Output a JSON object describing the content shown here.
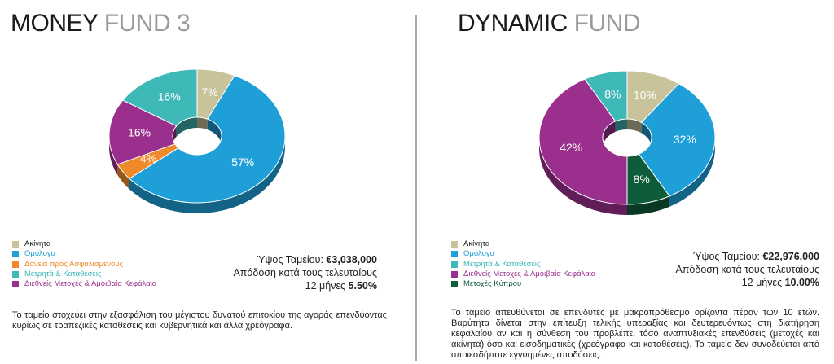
{
  "funds": [
    {
      "title_bold": "MONEY",
      "title_light": "FUND 3",
      "chart_data": {
        "type": "pie",
        "variant": "3d-donut",
        "start_angle_deg": 0,
        "slices": [
          {
            "label": "Ακίνητα",
            "value": 7,
            "color": "#c8c39b",
            "display": "7%"
          },
          {
            "label": "Ομόλογα",
            "value": 57,
            "color": "#1f9fd8",
            "display": "57%"
          },
          {
            "label": "Δάνεια προς Ασφαλισμένους",
            "value": 4,
            "color": "#ee8a2a",
            "display": "4%"
          },
          {
            "label": "Διεθνείς Μετοχές & Αμοιβαία Κεφάλαια",
            "value": 16,
            "color": "#9b2f8d",
            "display": "16%"
          },
          {
            "label": "Μετρητά & Καταθέσεις",
            "value": 16,
            "color": "#3fb8b8",
            "display": "16%"
          }
        ]
      },
      "legend": [
        {
          "label": "Ακίνητα",
          "color": "#c8c39b",
          "text_color": "#222222"
        },
        {
          "label": "Ομόλογα",
          "color": "#1f9fd8",
          "text_color": "#1f9fd8"
        },
        {
          "label": "Δάνεια προς Ασφαλισμένους",
          "color": "#ee8a2a",
          "text_color": "#ee8a2a"
        },
        {
          "label": "Μετρητά & Καταθέσεις",
          "color": "#3fb8b8",
          "text_color": "#3fb8b8"
        },
        {
          "label": "Διεθνείς Μετοχές & Αμοιβαία Κεφάλαια",
          "color": "#9b2f8d",
          "text_color": "#9b2f8d"
        }
      ],
      "size_label": "Ύψος Ταμείου:",
      "size_value": "€3,038,000",
      "return_label": "Απόδοση κατά τους τελευταίους",
      "return_period": "12 μήνες",
      "return_value": "5.50%",
      "description": "Το ταμείο στοχεύει στην εξασφάλιση του μέγιστου δυνατού επιτοκίου της αγοράς επενδύοντας κυρίως σε τραπεζικές καταθέσεις και κυβερνητικά και άλλα χρεόγραφα."
    },
    {
      "title_bold": "DYNAMIC",
      "title_light": "FUND",
      "chart_data": {
        "type": "pie",
        "variant": "3d-donut",
        "start_angle_deg": 0,
        "slices": [
          {
            "label": "Ακίνητα",
            "value": 10,
            "color": "#c8c39b",
            "display": "10%"
          },
          {
            "label": "Ομόλογα",
            "value": 32,
            "color": "#1f9fd8",
            "display": "32%"
          },
          {
            "label": "Μετοχές Κύπρου",
            "value": 8,
            "color": "#0f5c3a",
            "display": "8%"
          },
          {
            "label": "Διεθνείς Μετοχές & Αμοιβαία Κεφάλαια",
            "value": 42,
            "color": "#9b2f8d",
            "display": "42%"
          },
          {
            "label": "Μετρητά & Καταθέσεις",
            "value": 8,
            "color": "#3fb8b8",
            "display": "8%"
          }
        ]
      },
      "legend": [
        {
          "label": "Ακίνητα",
          "color": "#c8c39b",
          "text_color": "#222222"
        },
        {
          "label": "Ομόλογα",
          "color": "#1f9fd8",
          "text_color": "#1f9fd8"
        },
        {
          "label": "Μετρητά & Καταθέσεις",
          "color": "#3fb8b8",
          "text_color": "#3fb8b8"
        },
        {
          "label": "Διεθνείς Μετοχές & Αμοιβαία Κεφάλαια",
          "color": "#9b2f8d",
          "text_color": "#9b2f8d"
        },
        {
          "label": "Μετοχές Κύπρου",
          "color": "#0f5c3a",
          "text_color": "#0f5c3a"
        }
      ],
      "size_label": "Ύψος Ταμείου:",
      "size_value": "€22,976,000",
      "return_label": "Απόδοση κατά τους τελευταίους",
      "return_period": "12 μήνες",
      "return_value": "10.00%",
      "description": "Το ταμείο απευθύνεται σε επενδυτές με μακροπρόθεσμο ορίζοντα πέραν των 10 ετών. Βαρύτητα δίνεται στην επίτευξη τελικής υπεραξίας και δευτερευόντως στη διατήρηση κεφαλαίου αν και η σύνθεση του προβλέπει τόσο αναπτυξιακές επενδύσεις (μετοχές και ακίνητα) όσο και εισοδηματικές (χρεόγραφα και καταθέσεις). Το ταμείο δεν συνοδεύεται από οποιεσδήποτε εγγυημένες αποδόσεις."
    }
  ]
}
